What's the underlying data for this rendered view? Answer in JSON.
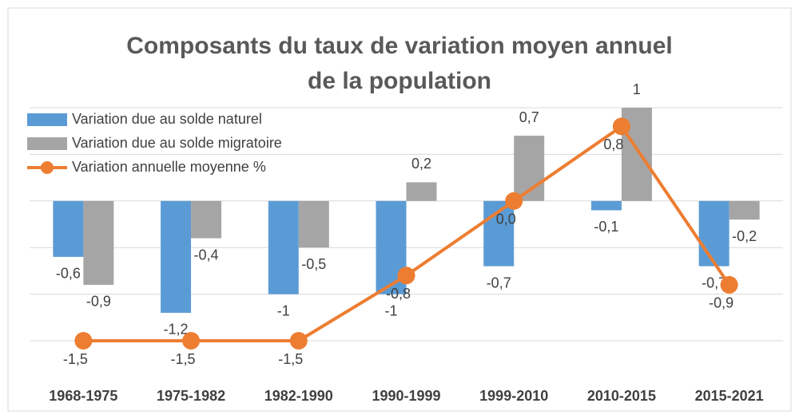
{
  "chart_data": {
    "type": "bar-line",
    "title": "Composants du taux de variation moyen annuel\nde la population",
    "categories": [
      "1968-1975",
      "1975-1982",
      "1982-1990",
      "1990-1999",
      "1999-2010",
      "2010-2015",
      "2015-2021"
    ],
    "series": [
      {
        "name": "Variation due au solde naturel",
        "type": "bar",
        "color": "#5b9bd5",
        "values": [
          -0.6,
          -1.2,
          -1,
          -1,
          -0.7,
          -0.1,
          -0.7
        ],
        "value_labels": [
          "-0,6",
          "-1,2",
          "-1",
          "-1",
          "-0,7",
          "-0,1",
          "-0,7"
        ]
      },
      {
        "name": "Variation due au solde migratoire",
        "type": "bar",
        "color": "#a5a5a5",
        "values": [
          -0.9,
          -0.4,
          -0.5,
          0.2,
          0.7,
          1,
          -0.2
        ],
        "value_labels": [
          "-0,9",
          "-0,4",
          "-0,5",
          "0,2",
          "0,7",
          "1",
          "-0,2"
        ]
      },
      {
        "name": "Variation annuelle moyenne %",
        "type": "line",
        "color": "#ed7d31",
        "values": [
          -1.5,
          -1.5,
          -1.5,
          -0.8,
          0.0,
          0.8,
          -0.9
        ],
        "value_labels": [
          "-1,5",
          "-1,5",
          "-1,5",
          "-0,8",
          "0,0",
          "0,8",
          "-0,9"
        ]
      }
    ],
    "ylim": [
      -1.5,
      1
    ],
    "yticks": [
      -1.5,
      -1,
      -0.5,
      0,
      0.5,
      1
    ],
    "grid": true,
    "legend": "top-left"
  }
}
